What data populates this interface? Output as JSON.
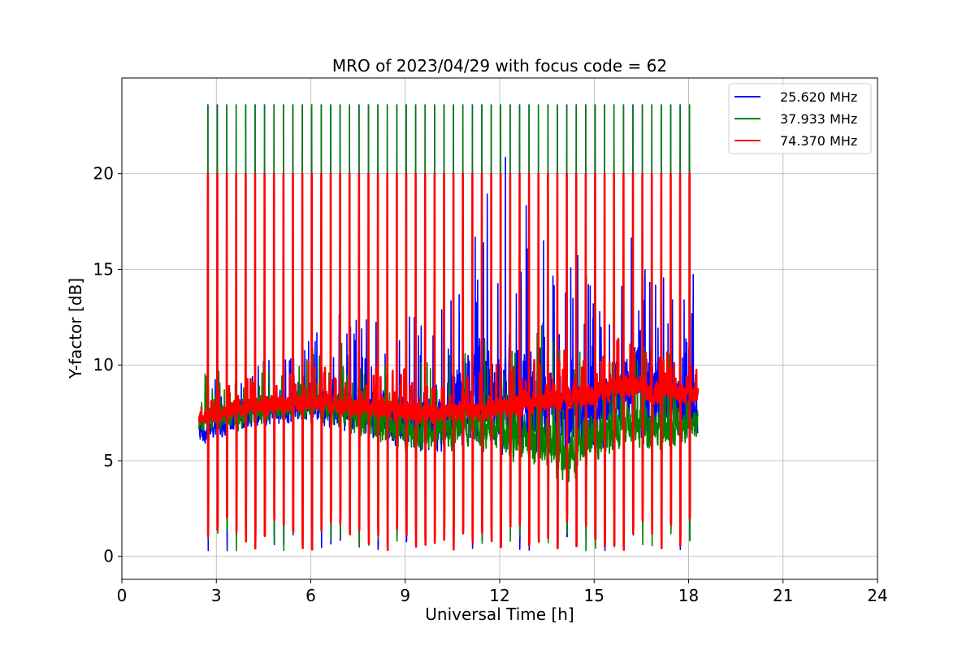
{
  "chart_data": {
    "type": "line",
    "title": "MRO of 2023/04/29 with focus code = 62",
    "xlabel": "Universal Time [h]",
    "ylabel": "Y-factor [dB]",
    "xlim": [
      0,
      24
    ],
    "ylim": [
      -1.2,
      25
    ],
    "xticks": [
      0,
      3,
      6,
      9,
      12,
      15,
      18,
      21,
      24
    ],
    "yticks": [
      0,
      5,
      10,
      15,
      20
    ],
    "grid": true,
    "legend_position": "top-right",
    "data_span_hours": [
      2.45,
      18.3
    ],
    "sweep_period_hours": 0.3,
    "series": [
      {
        "name": "25.620 MHz",
        "color": "#0000ff",
        "peak_value": 23.6,
        "baseline_points": [
          [
            2.5,
            6.5
          ],
          [
            4,
            7.5
          ],
          [
            6,
            8.0
          ],
          [
            8,
            7.5
          ],
          [
            9,
            7.0
          ],
          [
            10,
            7.0
          ],
          [
            11,
            8.5
          ],
          [
            12,
            8.5
          ],
          [
            13,
            8.0
          ],
          [
            14,
            7.5
          ],
          [
            15,
            7.5
          ],
          [
            16,
            9.0
          ],
          [
            17,
            8.5
          ],
          [
            18,
            8.0
          ]
        ],
        "variability_points": [
          [
            2.5,
            1.0
          ],
          [
            6,
            1.5
          ],
          [
            8,
            2.0
          ],
          [
            10,
            2.5
          ],
          [
            11,
            4.0
          ],
          [
            12,
            4.5
          ],
          [
            13,
            4.0
          ],
          [
            14,
            3.0
          ],
          [
            15,
            3.0
          ],
          [
            16,
            4.0
          ],
          [
            17,
            3.5
          ],
          [
            18,
            2.5
          ]
        ]
      },
      {
        "name": "37.933 MHz",
        "color": "#008000",
        "peak_value": 23.6,
        "baseline_points": [
          [
            2.5,
            7.0
          ],
          [
            4,
            7.5
          ],
          [
            6,
            8.0
          ],
          [
            8,
            7.0
          ],
          [
            9,
            6.5
          ],
          [
            10,
            6.5
          ],
          [
            11,
            7.0
          ],
          [
            12,
            6.5
          ],
          [
            13,
            6.0
          ],
          [
            14,
            5.5
          ],
          [
            15,
            6.0
          ],
          [
            16,
            7.0
          ],
          [
            17,
            6.5
          ],
          [
            18,
            7.0
          ]
        ],
        "variability_points": [
          [
            2.5,
            1.0
          ],
          [
            6,
            1.2
          ],
          [
            8,
            1.5
          ],
          [
            10,
            1.5
          ],
          [
            12,
            1.8
          ],
          [
            14,
            2.5
          ],
          [
            15,
            2.0
          ],
          [
            16,
            1.8
          ],
          [
            18,
            1.5
          ]
        ]
      },
      {
        "name": "74.370 MHz",
        "color": "#ff0000",
        "peak_value": 20.0,
        "baseline_points": [
          [
            2.5,
            7.2
          ],
          [
            4,
            7.8
          ],
          [
            5,
            8.0
          ],
          [
            6,
            8.1
          ],
          [
            8,
            7.8
          ],
          [
            9,
            7.5
          ],
          [
            10,
            7.5
          ],
          [
            11,
            7.6
          ],
          [
            12,
            7.8
          ],
          [
            13,
            8.0
          ],
          [
            14,
            8.2
          ],
          [
            15,
            8.5
          ],
          [
            16,
            9.0
          ],
          [
            17,
            8.5
          ],
          [
            18,
            8.5
          ]
        ],
        "variability_points": [
          [
            2.5,
            0.5
          ],
          [
            6,
            0.8
          ],
          [
            10,
            0.8
          ],
          [
            14,
            0.9
          ],
          [
            16,
            1.0
          ],
          [
            18,
            0.8
          ]
        ]
      }
    ]
  }
}
